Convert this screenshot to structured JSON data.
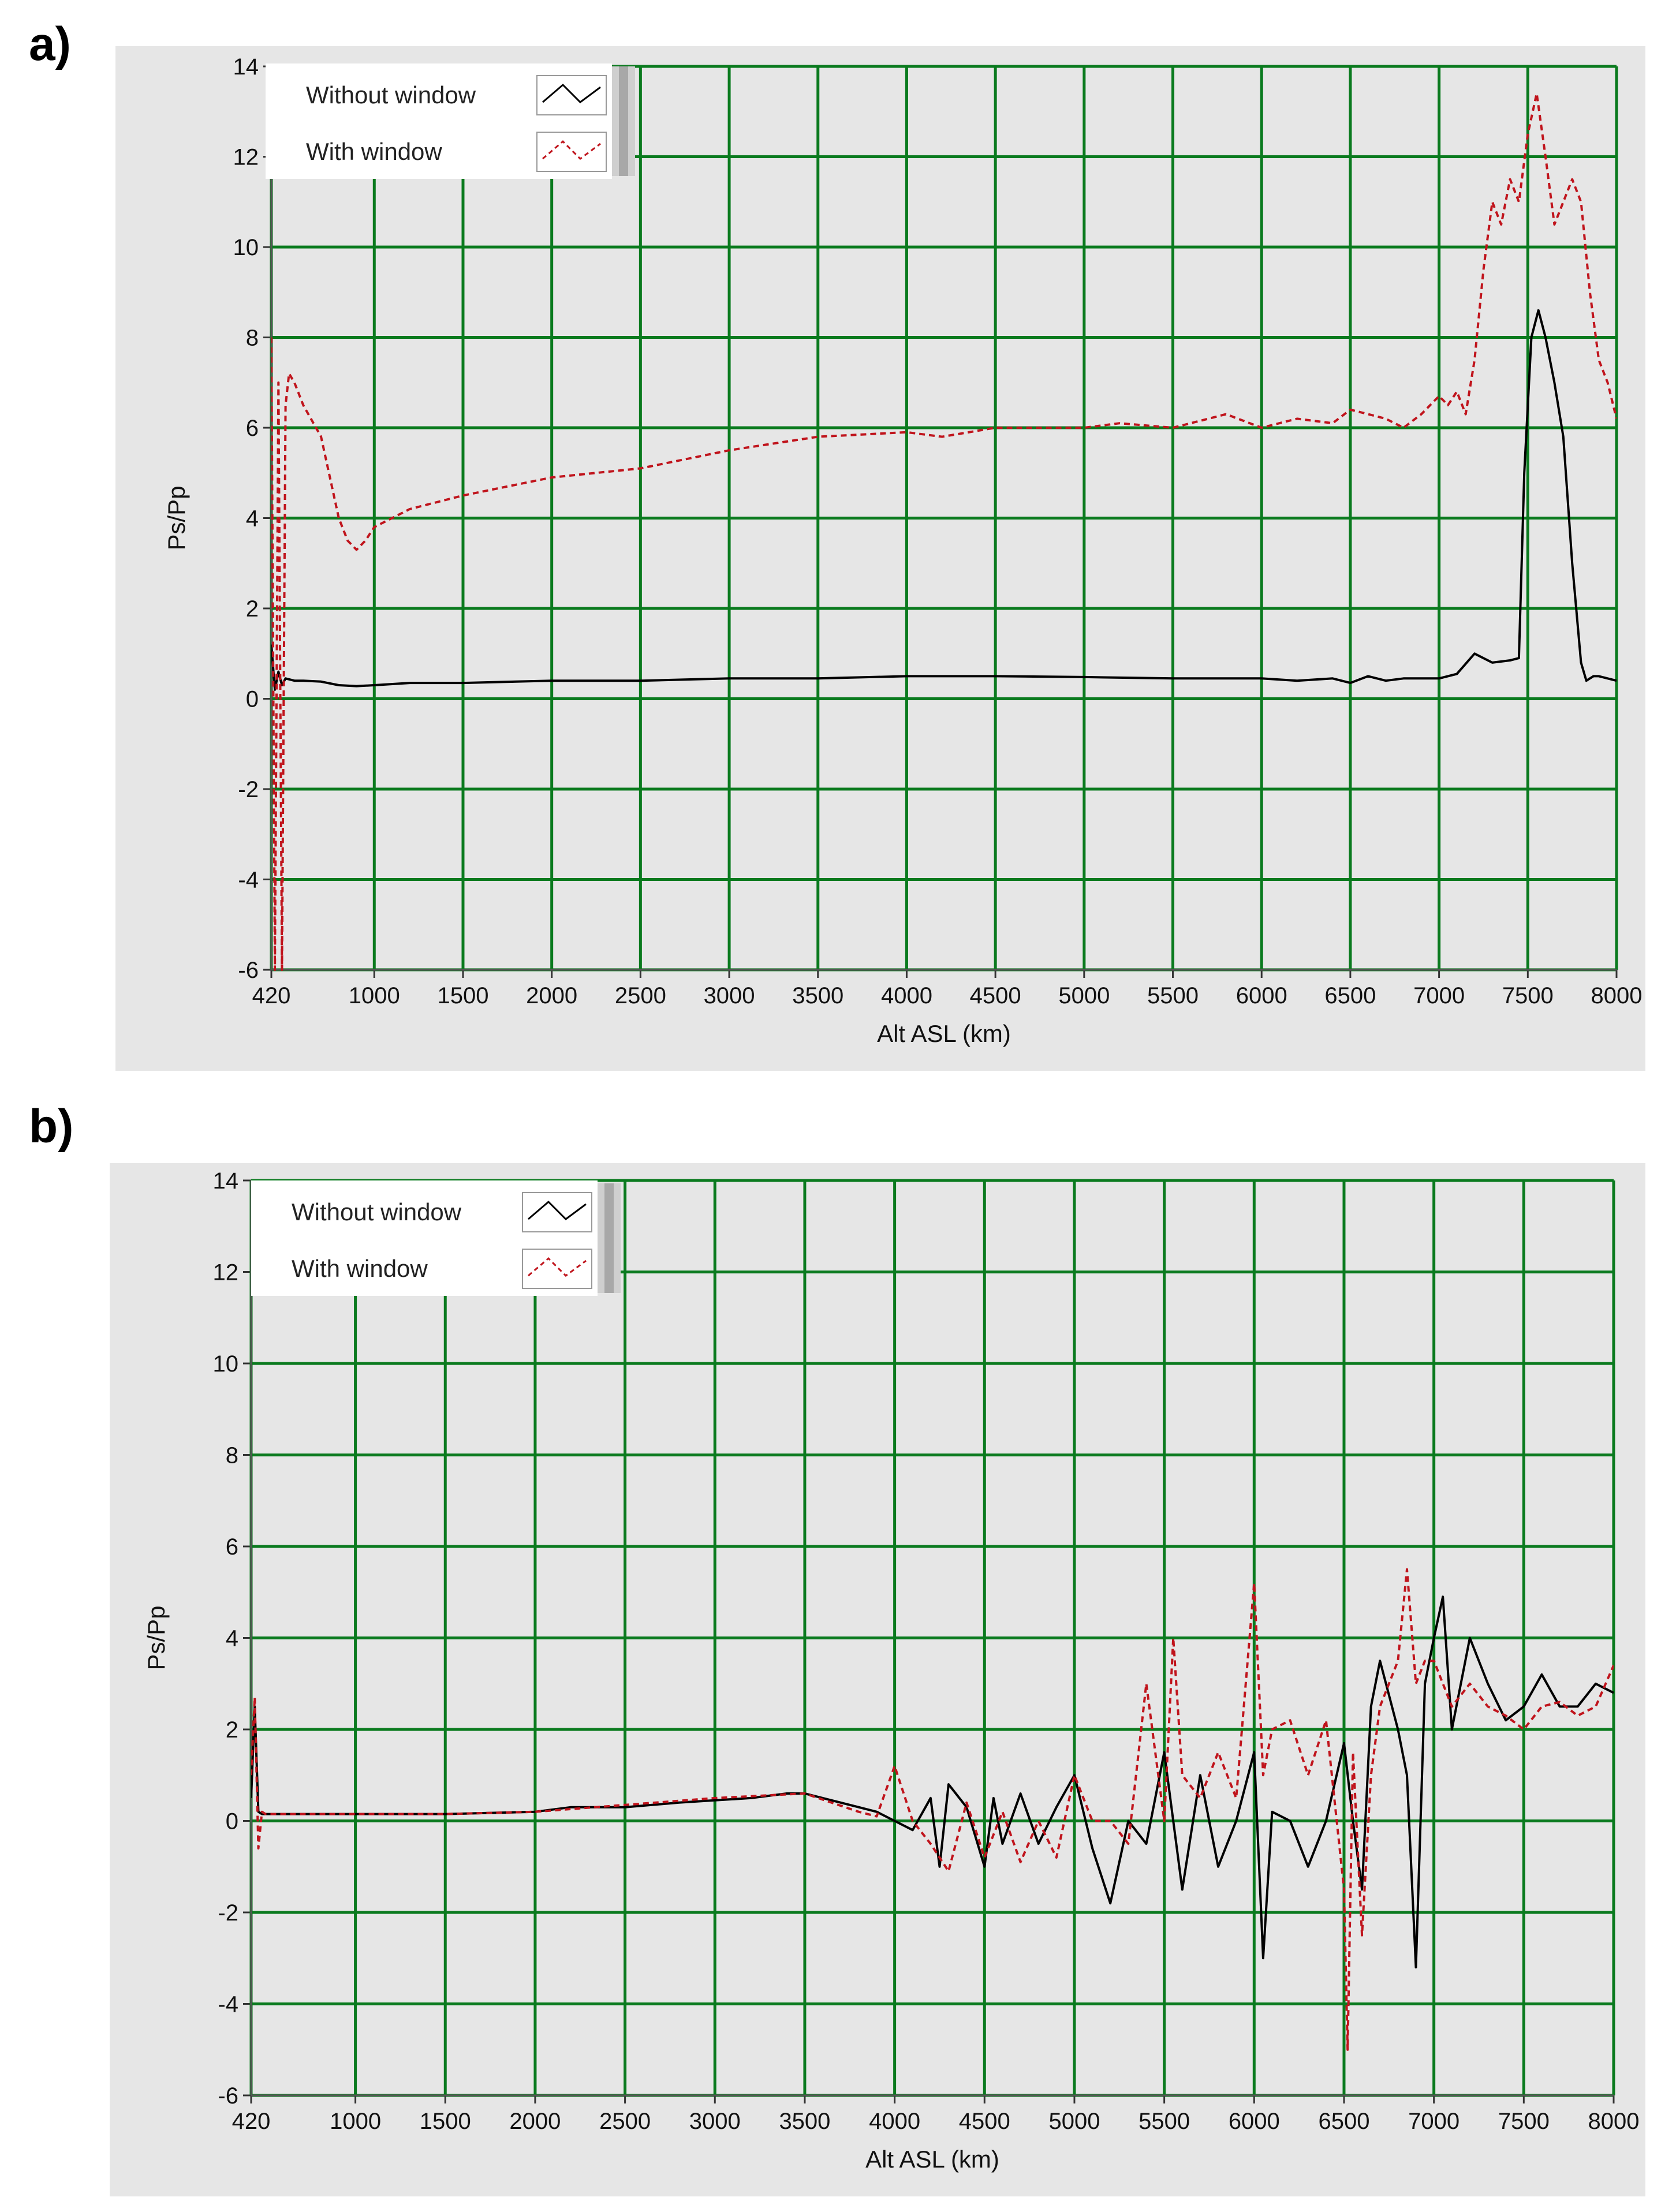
{
  "panels": [
    {
      "label": "a)"
    },
    {
      "label": "b)"
    }
  ],
  "colors": {
    "background": "#e6e6e6",
    "grid": "#0a7a1e",
    "without_window": "#000000",
    "with_window": "#c0141c"
  },
  "chart_data": [
    {
      "type": "line",
      "title": "",
      "xlabel": "Alt ASL (km)",
      "ylabel": "Ps/Pp",
      "xlim": [
        420,
        8000
      ],
      "ylim": [
        -6,
        14
      ],
      "xticks": [
        420,
        1000,
        1500,
        2000,
        2500,
        3000,
        3500,
        4000,
        4500,
        5000,
        5500,
        6000,
        6500,
        7000,
        7500,
        8000
      ],
      "yticks": [
        14,
        12,
        10,
        8,
        6,
        4,
        2,
        0,
        -2,
        -4,
        -6
      ],
      "grid": true,
      "legend_position": "top-left",
      "series": [
        {
          "name": "Without window",
          "style": "solid",
          "x": [
            420,
            440,
            460,
            480,
            500,
            550,
            600,
            700,
            800,
            900,
            1000,
            1200,
            1500,
            2000,
            2500,
            3000,
            3500,
            4000,
            4500,
            5000,
            5500,
            6000,
            6200,
            6400,
            6500,
            6600,
            6700,
            6800,
            7000,
            7100,
            7200,
            7300,
            7400,
            7450,
            7480,
            7520,
            7560,
            7600,
            7650,
            7700,
            7750,
            7800,
            7830,
            7870,
            7900,
            7950,
            8000
          ],
          "y": [
            1.2,
            0.2,
            0.6,
            0.3,
            0.45,
            0.4,
            0.4,
            0.38,
            0.3,
            0.28,
            0.3,
            0.35,
            0.35,
            0.4,
            0.4,
            0.45,
            0.45,
            0.5,
            0.5,
            0.48,
            0.45,
            0.45,
            0.4,
            0.45,
            0.35,
            0.5,
            0.4,
            0.45,
            0.45,
            0.55,
            1.0,
            0.8,
            0.85,
            0.9,
            5.0,
            8.0,
            8.6,
            8.0,
            7.0,
            5.8,
            3.0,
            0.8,
            0.4,
            0.5,
            0.5,
            0.45,
            0.4
          ]
        },
        {
          "name": "With window",
          "style": "dashed",
          "x": [
            420,
            440,
            460,
            480,
            500,
            520,
            550,
            600,
            700,
            800,
            850,
            900,
            950,
            1000,
            1200,
            1500,
            2000,
            2500,
            3000,
            3500,
            4000,
            4200,
            4500,
            5000,
            5200,
            5500,
            5600,
            5800,
            6000,
            6200,
            6400,
            6500,
            6600,
            6700,
            6800,
            6900,
            7000,
            7050,
            7100,
            7150,
            7200,
            7250,
            7300,
            7350,
            7400,
            7450,
            7500,
            7550,
            7600,
            7650,
            7700,
            7750,
            7800,
            7850,
            7900,
            7950,
            8000
          ],
          "y": [
            8.0,
            -6,
            7.0,
            -6,
            6.5,
            7.2,
            7.0,
            6.5,
            5.8,
            4.0,
            3.5,
            3.3,
            3.5,
            3.8,
            4.2,
            4.5,
            4.9,
            5.1,
            5.5,
            5.8,
            5.9,
            5.8,
            6.0,
            6.0,
            6.1,
            6.0,
            6.1,
            6.3,
            6.0,
            6.2,
            6.1,
            6.4,
            6.3,
            6.2,
            6.0,
            6.3,
            6.7,
            6.5,
            6.8,
            6.3,
            7.5,
            9.5,
            11.0,
            10.5,
            11.5,
            11.0,
            12.5,
            13.4,
            12.0,
            10.5,
            11.0,
            11.5,
            11.0,
            9.0,
            7.5,
            7.0,
            6.2
          ]
        }
      ]
    },
    {
      "type": "line",
      "title": "",
      "xlabel": "Alt ASL (km)",
      "ylabel": "Ps/Pp",
      "xlim": [
        420,
        8000
      ],
      "ylim": [
        -6,
        14
      ],
      "xticks": [
        420,
        1000,
        1500,
        2000,
        2500,
        3000,
        3500,
        4000,
        4500,
        5000,
        5500,
        6000,
        6500,
        7000,
        7500,
        8000
      ],
      "yticks": [
        14,
        12,
        10,
        8,
        6,
        4,
        2,
        0,
        -2,
        -4,
        -6
      ],
      "grid": true,
      "legend_position": "top-left",
      "series": [
        {
          "name": "Without window",
          "style": "solid",
          "x": [
            420,
            440,
            460,
            480,
            500,
            550,
            1000,
            1500,
            2000,
            2200,
            2500,
            2800,
            3000,
            3200,
            3400,
            3500,
            3700,
            3800,
            3900,
            4000,
            4100,
            4200,
            4250,
            4300,
            4400,
            4500,
            4550,
            4600,
            4700,
            4800,
            4900,
            5000,
            5100,
            5200,
            5300,
            5400,
            5500,
            5600,
            5700,
            5800,
            5900,
            6000,
            6050,
            6100,
            6200,
            6300,
            6400,
            6500,
            6550,
            6600,
            6650,
            6700,
            6800,
            6850,
            6900,
            6950,
            7000,
            7050,
            7100,
            7200,
            7300,
            7400,
            7500,
            7600,
            7700,
            7800,
            7900,
            8000
          ],
          "y": [
            0.5,
            2.5,
            0.2,
            0.15,
            0.15,
            0.15,
            0.15,
            0.15,
            0.2,
            0.3,
            0.3,
            0.4,
            0.45,
            0.5,
            0.6,
            0.6,
            0.4,
            0.3,
            0.2,
            0.0,
            -0.2,
            0.5,
            -1.0,
            0.8,
            0.3,
            -1.0,
            0.5,
            -0.5,
            0.6,
            -0.5,
            0.3,
            1.0,
            -0.6,
            -1.8,
            0.0,
            -0.5,
            1.5,
            -1.5,
            1.0,
            -1.0,
            0.0,
            1.5,
            -3.0,
            0.2,
            0.0,
            -1.0,
            0.0,
            1.7,
            0.0,
            -1.5,
            2.5,
            3.5,
            2.0,
            1.0,
            -3.2,
            3.0,
            4.0,
            4.9,
            2.0,
            4.0,
            3.0,
            2.2,
            2.5,
            3.2,
            2.5,
            2.5,
            3.0,
            2.8
          ]
        },
        {
          "name": "With window",
          "style": "dashed",
          "x": [
            420,
            440,
            460,
            480,
            500,
            550,
            1000,
            1500,
            2000,
            2500,
            3000,
            3500,
            3800,
            3900,
            4000,
            4100,
            4200,
            4300,
            4400,
            4500,
            4600,
            4700,
            4800,
            4900,
            5000,
            5100,
            5200,
            5300,
            5400,
            5500,
            5550,
            5600,
            5700,
            5800,
            5900,
            6000,
            6050,
            6100,
            6200,
            6300,
            6400,
            6500,
            6520,
            6550,
            6600,
            6650,
            6700,
            6800,
            6850,
            6900,
            6950,
            7000,
            7100,
            7200,
            7300,
            7400,
            7500,
            7600,
            7700,
            7800,
            7900,
            8000
          ],
          "y": [
            1.0,
            2.7,
            -0.6,
            0.2,
            0.15,
            0.15,
            0.15,
            0.15,
            0.2,
            0.35,
            0.5,
            0.6,
            0.2,
            0.1,
            1.2,
            0.0,
            -0.5,
            -1.1,
            0.4,
            -0.8,
            0.2,
            -0.9,
            0.0,
            -0.8,
            1.0,
            0.0,
            0.0,
            -0.5,
            3.0,
            0.0,
            4.0,
            1.0,
            0.5,
            1.5,
            0.5,
            5.2,
            1.0,
            2.0,
            2.2,
            1.0,
            2.2,
            -1.5,
            -5.0,
            1.5,
            -2.5,
            1.0,
            2.5,
            3.5,
            5.5,
            3.0,
            3.5,
            3.5,
            2.5,
            3.0,
            2.5,
            2.3,
            2.0,
            2.5,
            2.6,
            2.3,
            2.5,
            3.4
          ]
        }
      ]
    }
  ]
}
